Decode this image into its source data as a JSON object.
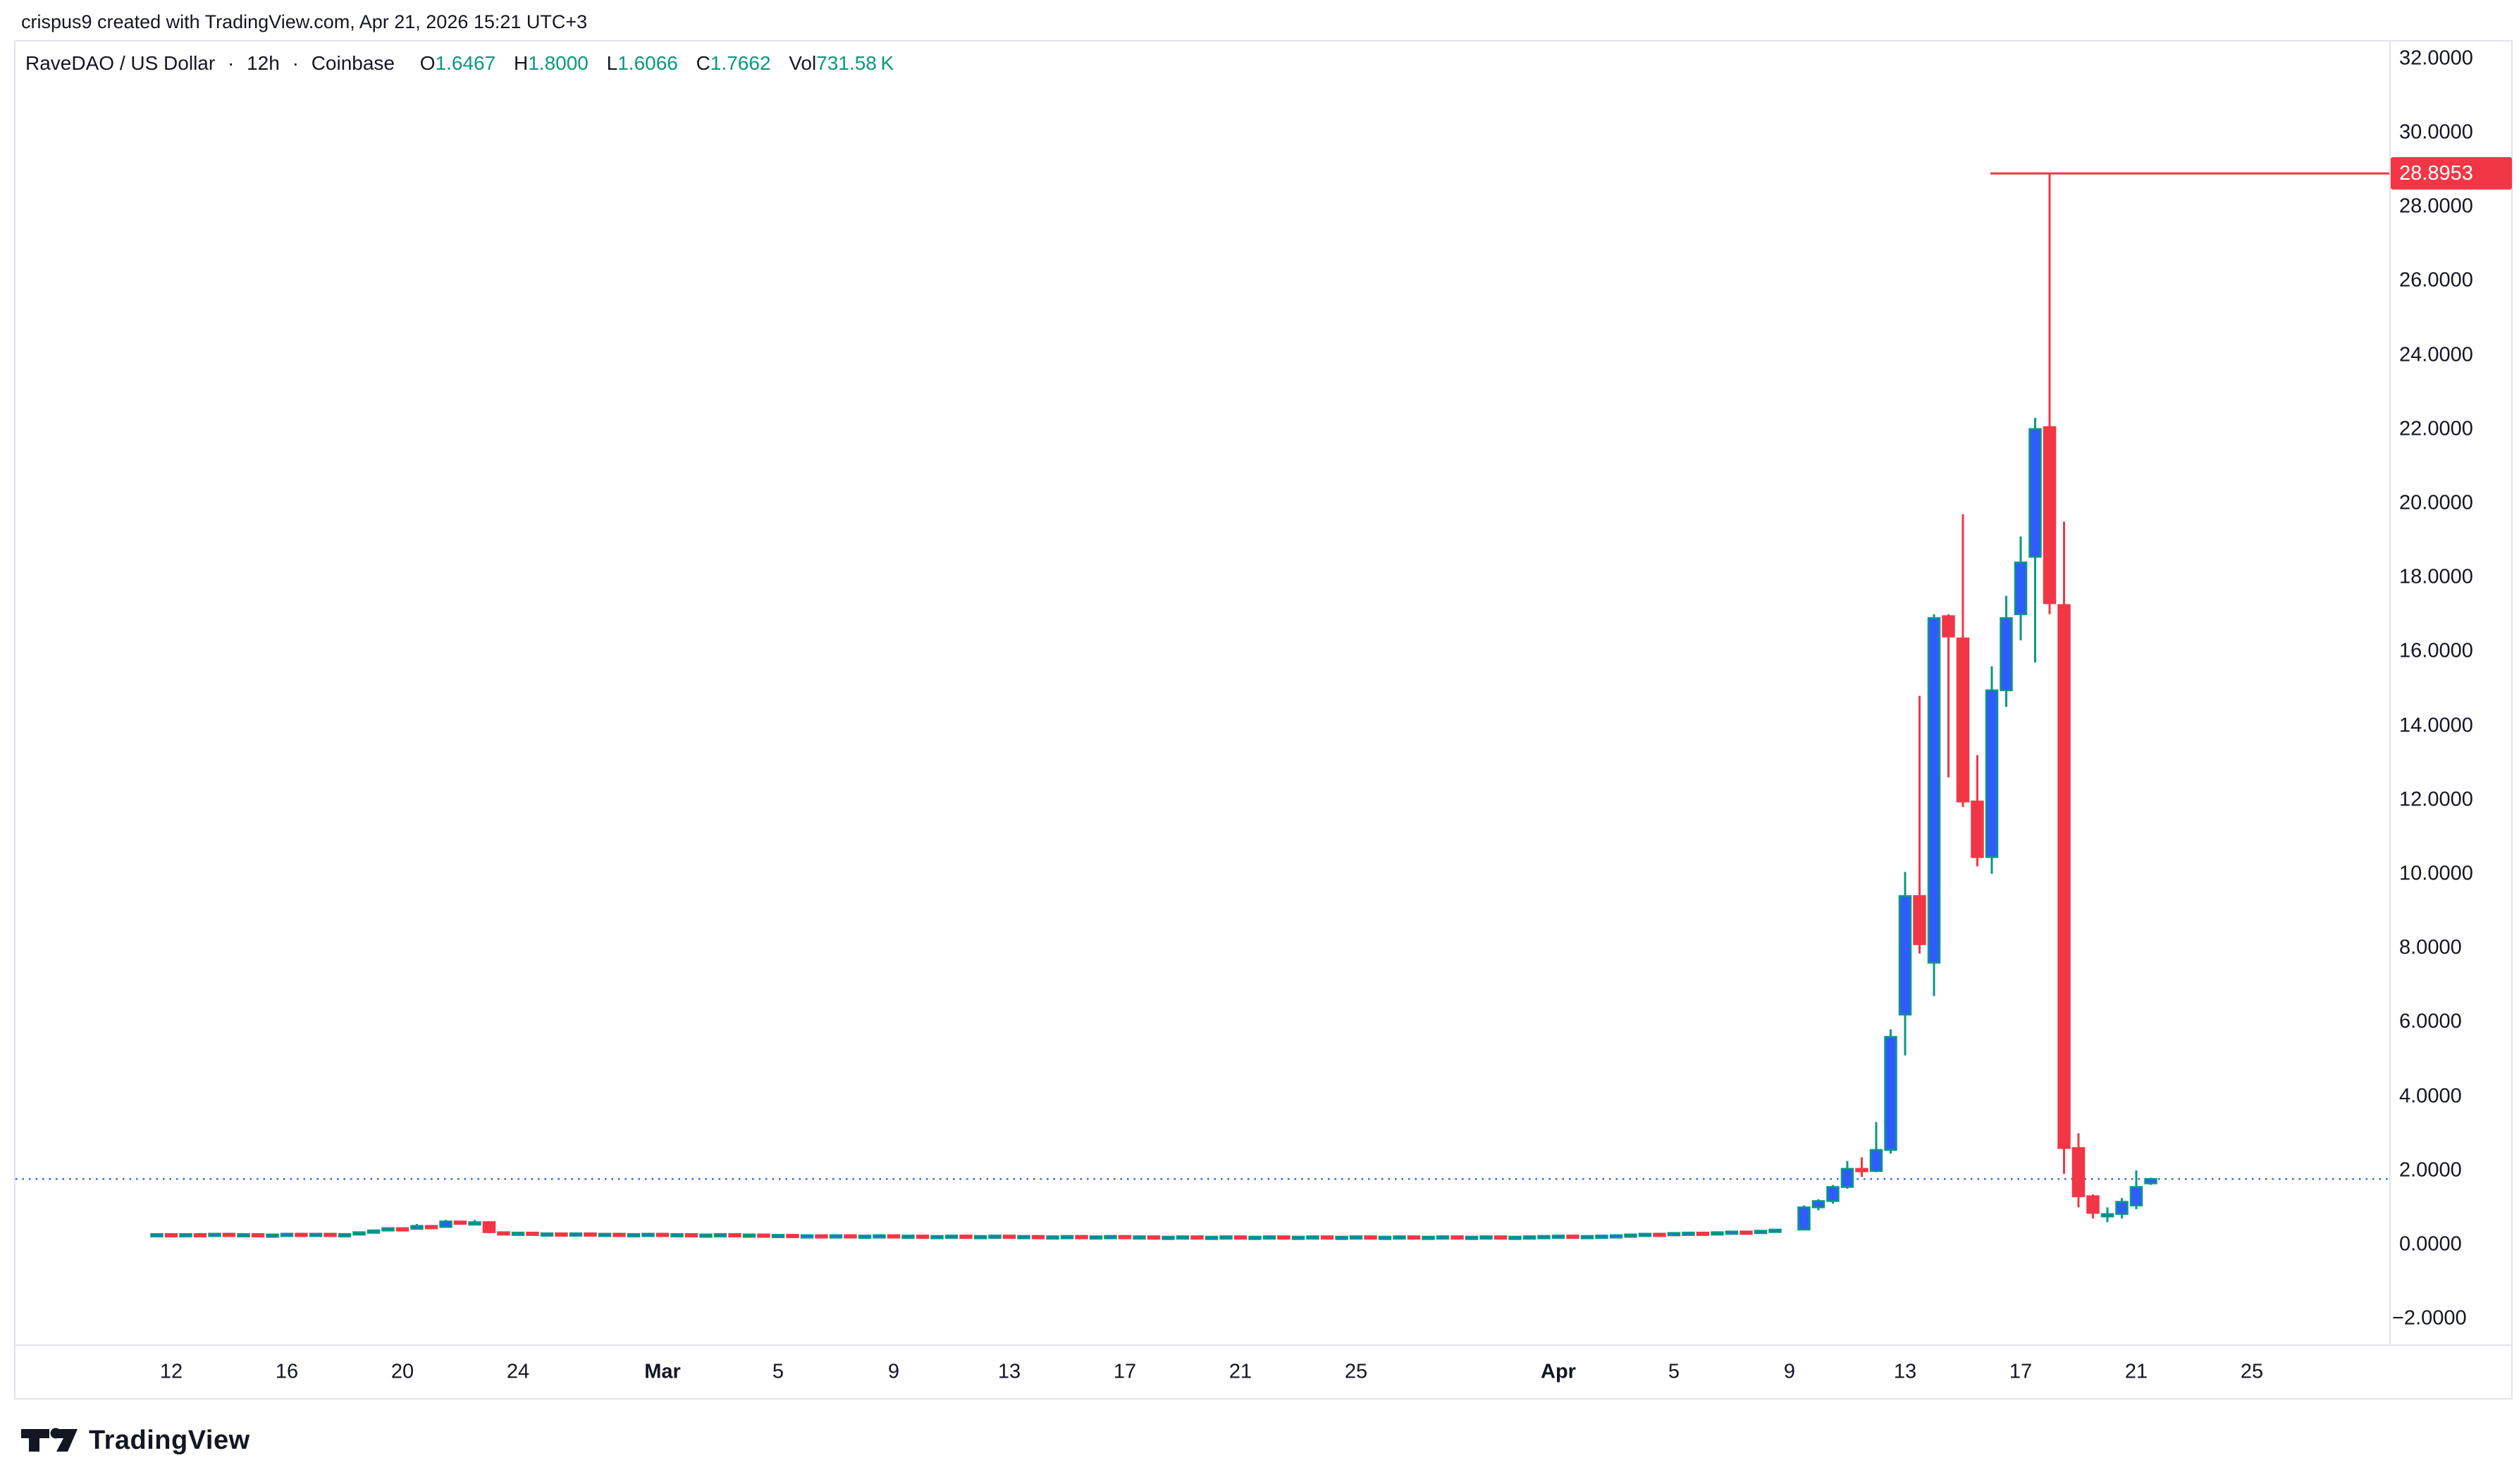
{
  "attribution": "crispus9 created with TradingView.com, Apr 21, 2026 15:21 UTC+3",
  "legend": {
    "symbol": "RaveDAO / US Dollar",
    "separator": "·",
    "interval": "12h",
    "exchange": "Coinbase",
    "o_label": "O",
    "o_value": "1.6467",
    "h_label": "H",
    "h_value": "1.8000",
    "l_label": "L",
    "l_value": "1.6066",
    "c_label": "C",
    "c_value": "1.7662",
    "vol_label": "Vol",
    "vol_value": "731.58 K"
  },
  "logo": {
    "text": "TradingView"
  },
  "colors": {
    "text": "#131722",
    "up_body": "#2e5cff",
    "up_border": "#089981",
    "down": "#f23645",
    "price_line": "#f23645",
    "close_line": "#2962ff",
    "frame": "#e0e3eb",
    "label_text": "#ffffff"
  },
  "chart_data": {
    "type": "candlestick",
    "title": "RaveDAO / US Dollar",
    "interval": "12h",
    "exchange": "Coinbase",
    "ylim": [
      -3.2,
      32.6
    ],
    "grid": false,
    "y_axis_ticks": [
      [
        32,
        "32.0000"
      ],
      [
        30,
        "30.0000"
      ],
      [
        28,
        "28.0000"
      ],
      [
        26,
        "26.0000"
      ],
      [
        24,
        "24.0000"
      ],
      [
        22,
        "22.0000"
      ],
      [
        20,
        "20.0000"
      ],
      [
        18,
        "18.0000"
      ],
      [
        16,
        "16.0000"
      ],
      [
        14,
        "14.0000"
      ],
      [
        12,
        "12.0000"
      ],
      [
        10,
        "10.0000"
      ],
      [
        8,
        "8.0000"
      ],
      [
        6,
        "6.0000"
      ],
      [
        4,
        "4.0000"
      ],
      [
        2,
        "2.0000"
      ],
      [
        0,
        "0.0000"
      ],
      [
        -2,
        "−2.0000"
      ]
    ],
    "x_axis_ticks": [
      [
        "12",
        0,
        false
      ],
      [
        "16",
        4,
        false
      ],
      [
        "20",
        8,
        false
      ],
      [
        "24",
        12,
        false
      ],
      [
        "Mar",
        17,
        true
      ],
      [
        "5",
        21,
        false
      ],
      [
        "9",
        25,
        false
      ],
      [
        "13",
        29,
        false
      ],
      [
        "17",
        33,
        false
      ],
      [
        "21",
        37,
        false
      ],
      [
        "25",
        41,
        false
      ],
      [
        "Apr",
        48,
        true
      ],
      [
        "5",
        52,
        false
      ],
      [
        "9",
        56,
        false
      ],
      [
        "13",
        60,
        false
      ],
      [
        "17",
        64,
        false
      ],
      [
        "21",
        68,
        false
      ],
      [
        "25",
        72,
        false
      ]
    ],
    "price_line": {
      "value": 28.8953,
      "label": "28.8953",
      "start_day": 62.95
    },
    "close_line": {
      "value": 1.7662
    },
    "candles": [
      [
        -0.5,
        0.26,
        0.29,
        0.25,
        0.28
      ],
      [
        0,
        0.28,
        0.29,
        0.25,
        0.26
      ],
      [
        0.5,
        0.26,
        0.29,
        0.25,
        0.28
      ],
      [
        1,
        0.28,
        0.3,
        0.26,
        0.27
      ],
      [
        1.5,
        0.27,
        0.3,
        0.26,
        0.29
      ],
      [
        2,
        0.29,
        0.3,
        0.26,
        0.27
      ],
      [
        2.5,
        0.27,
        0.29,
        0.25,
        0.28
      ],
      [
        3,
        0.28,
        0.29,
        0.25,
        0.26
      ],
      [
        3.5,
        0.26,
        0.28,
        0.24,
        0.27
      ],
      [
        4,
        0.27,
        0.3,
        0.26,
        0.29
      ],
      [
        4.5,
        0.29,
        0.31,
        0.27,
        0.28
      ],
      [
        5,
        0.28,
        0.3,
        0.26,
        0.29
      ],
      [
        5.5,
        0.29,
        0.3,
        0.26,
        0.27
      ],
      [
        6,
        0.27,
        0.29,
        0.25,
        0.28
      ],
      [
        6.5,
        0.28,
        0.34,
        0.27,
        0.33
      ],
      [
        7,
        0.33,
        0.39,
        0.32,
        0.38
      ],
      [
        7.5,
        0.38,
        0.45,
        0.37,
        0.44
      ],
      [
        8,
        0.44,
        0.45,
        0.4,
        0.42
      ],
      [
        8.5,
        0.42,
        0.55,
        0.41,
        0.5
      ],
      [
        9,
        0.5,
        0.52,
        0.45,
        0.47
      ],
      [
        9.5,
        0.47,
        0.66,
        0.46,
        0.62
      ],
      [
        10,
        0.62,
        0.64,
        0.56,
        0.58
      ],
      [
        10.5,
        0.58,
        0.66,
        0.52,
        0.6
      ],
      [
        11,
        0.6,
        0.63,
        0.3,
        0.33
      ],
      [
        11.5,
        0.33,
        0.35,
        0.28,
        0.3
      ],
      [
        12,
        0.3,
        0.33,
        0.29,
        0.32
      ],
      [
        12.5,
        0.32,
        0.33,
        0.28,
        0.29
      ],
      [
        13,
        0.29,
        0.31,
        0.27,
        0.3
      ],
      [
        13.5,
        0.3,
        0.32,
        0.28,
        0.29
      ],
      [
        14,
        0.29,
        0.31,
        0.27,
        0.3
      ],
      [
        14.5,
        0.3,
        0.31,
        0.27,
        0.28
      ],
      [
        15,
        0.28,
        0.3,
        0.26,
        0.29
      ],
      [
        15.5,
        0.29,
        0.3,
        0.26,
        0.27
      ],
      [
        16,
        0.27,
        0.29,
        0.25,
        0.28
      ],
      [
        16.5,
        0.28,
        0.3,
        0.26,
        0.29
      ],
      [
        17,
        0.29,
        0.3,
        0.26,
        0.27
      ],
      [
        17.5,
        0.27,
        0.29,
        0.25,
        0.28
      ],
      [
        18,
        0.28,
        0.29,
        0.25,
        0.26
      ],
      [
        18.5,
        0.26,
        0.28,
        0.24,
        0.27
      ],
      [
        19,
        0.27,
        0.29,
        0.25,
        0.28
      ],
      [
        19.5,
        0.28,
        0.29,
        0.25,
        0.26
      ],
      [
        20,
        0.26,
        0.28,
        0.24,
        0.27
      ],
      [
        20.5,
        0.27,
        0.28,
        0.24,
        0.25
      ],
      [
        21,
        0.25,
        0.27,
        0.23,
        0.26
      ],
      [
        21.5,
        0.26,
        0.27,
        0.23,
        0.24
      ],
      [
        22,
        0.24,
        0.26,
        0.22,
        0.25
      ],
      [
        22.5,
        0.25,
        0.26,
        0.22,
        0.23
      ],
      [
        23,
        0.23,
        0.26,
        0.22,
        0.25
      ],
      [
        23.5,
        0.25,
        0.26,
        0.22,
        0.23
      ],
      [
        24,
        0.23,
        0.25,
        0.21,
        0.24
      ],
      [
        24.5,
        0.24,
        0.26,
        0.22,
        0.25
      ],
      [
        25,
        0.25,
        0.26,
        0.22,
        0.23
      ],
      [
        25.5,
        0.23,
        0.25,
        0.21,
        0.24
      ],
      [
        26,
        0.24,
        0.25,
        0.21,
        0.22
      ],
      [
        26.5,
        0.22,
        0.24,
        0.2,
        0.23
      ],
      [
        27,
        0.23,
        0.25,
        0.21,
        0.24
      ],
      [
        27.5,
        0.24,
        0.25,
        0.21,
        0.22
      ],
      [
        28,
        0.22,
        0.24,
        0.2,
        0.23
      ],
      [
        28.5,
        0.23,
        0.25,
        0.21,
        0.24
      ],
      [
        29,
        0.24,
        0.25,
        0.21,
        0.22
      ],
      [
        29.5,
        0.22,
        0.24,
        0.2,
        0.23
      ],
      [
        30,
        0.23,
        0.24,
        0.2,
        0.21
      ],
      [
        30.5,
        0.21,
        0.23,
        0.19,
        0.22
      ],
      [
        31,
        0.22,
        0.24,
        0.2,
        0.23
      ],
      [
        31.5,
        0.23,
        0.24,
        0.2,
        0.21
      ],
      [
        32,
        0.21,
        0.23,
        0.19,
        0.22
      ],
      [
        32.5,
        0.22,
        0.24,
        0.2,
        0.23
      ],
      [
        33,
        0.23,
        0.24,
        0.2,
        0.21
      ],
      [
        33.5,
        0.21,
        0.23,
        0.19,
        0.22
      ],
      [
        34,
        0.22,
        0.23,
        0.19,
        0.2
      ],
      [
        34.5,
        0.2,
        0.22,
        0.18,
        0.21
      ],
      [
        35,
        0.21,
        0.23,
        0.19,
        0.22
      ],
      [
        35.5,
        0.22,
        0.23,
        0.19,
        0.2
      ],
      [
        36,
        0.2,
        0.22,
        0.18,
        0.21
      ],
      [
        36.5,
        0.21,
        0.23,
        0.19,
        0.22
      ],
      [
        37,
        0.22,
        0.23,
        0.19,
        0.2
      ],
      [
        37.5,
        0.2,
        0.22,
        0.18,
        0.21
      ],
      [
        38,
        0.21,
        0.23,
        0.19,
        0.22
      ],
      [
        38.5,
        0.22,
        0.23,
        0.19,
        0.2
      ],
      [
        39,
        0.2,
        0.22,
        0.18,
        0.21
      ],
      [
        39.5,
        0.21,
        0.23,
        0.19,
        0.22
      ],
      [
        40,
        0.22,
        0.23,
        0.19,
        0.2
      ],
      [
        40.5,
        0.2,
        0.22,
        0.18,
        0.21
      ],
      [
        41,
        0.21,
        0.23,
        0.19,
        0.22
      ],
      [
        41.5,
        0.22,
        0.23,
        0.19,
        0.2
      ],
      [
        42,
        0.2,
        0.22,
        0.18,
        0.21
      ],
      [
        42.5,
        0.21,
        0.23,
        0.19,
        0.22
      ],
      [
        43,
        0.22,
        0.23,
        0.19,
        0.2
      ],
      [
        43.5,
        0.2,
        0.22,
        0.18,
        0.21
      ],
      [
        44,
        0.21,
        0.23,
        0.19,
        0.22
      ],
      [
        44.5,
        0.22,
        0.23,
        0.19,
        0.2
      ],
      [
        45,
        0.2,
        0.22,
        0.18,
        0.21
      ],
      [
        45.5,
        0.21,
        0.23,
        0.19,
        0.22
      ],
      [
        46,
        0.22,
        0.23,
        0.19,
        0.2
      ],
      [
        46.5,
        0.2,
        0.22,
        0.18,
        0.21
      ],
      [
        47,
        0.21,
        0.23,
        0.19,
        0.22
      ],
      [
        47.5,
        0.22,
        0.24,
        0.2,
        0.23
      ],
      [
        48,
        0.23,
        0.25,
        0.21,
        0.24
      ],
      [
        48.5,
        0.24,
        0.25,
        0.21,
        0.22
      ],
      [
        49,
        0.22,
        0.24,
        0.2,
        0.23
      ],
      [
        49.5,
        0.23,
        0.25,
        0.21,
        0.24
      ],
      [
        50,
        0.24,
        0.26,
        0.22,
        0.25
      ],
      [
        50.5,
        0.25,
        0.28,
        0.24,
        0.27
      ],
      [
        51,
        0.27,
        0.3,
        0.26,
        0.29
      ],
      [
        51.5,
        0.29,
        0.3,
        0.27,
        0.28
      ],
      [
        52,
        0.28,
        0.32,
        0.27,
        0.31
      ],
      [
        52.5,
        0.31,
        0.33,
        0.29,
        0.32
      ],
      [
        53,
        0.32,
        0.33,
        0.29,
        0.3
      ],
      [
        53.5,
        0.3,
        0.34,
        0.29,
        0.33
      ],
      [
        54,
        0.33,
        0.36,
        0.32,
        0.35
      ],
      [
        54.5,
        0.35,
        0.36,
        0.32,
        0.33
      ],
      [
        55,
        0.33,
        0.39,
        0.32,
        0.37
      ],
      [
        55.5,
        0.37,
        0.41,
        0.36,
        0.4
      ],
      [
        56.5,
        0.4,
        1.05,
        0.38,
        1.0
      ],
      [
        57,
        1.0,
        1.22,
        0.92,
        1.17
      ],
      [
        57.5,
        1.17,
        1.6,
        1.1,
        1.55
      ],
      [
        58,
        1.55,
        2.25,
        1.5,
        2.04
      ],
      [
        58.5,
        2.04,
        2.35,
        1.82,
        1.98
      ],
      [
        59,
        1.98,
        3.3,
        1.95,
        2.55
      ],
      [
        59.5,
        2.55,
        5.8,
        2.45,
        5.6
      ],
      [
        60,
        6.2,
        10.05,
        5.1,
        9.4
      ],
      [
        60.5,
        9.4,
        14.8,
        7.85,
        8.1
      ],
      [
        61,
        7.6,
        17.0,
        6.7,
        16.9
      ],
      [
        61.5,
        16.95,
        17.0,
        12.6,
        16.4
      ],
      [
        62,
        16.35,
        19.7,
        11.8,
        11.95
      ],
      [
        62.5,
        11.95,
        13.2,
        10.2,
        10.45
      ],
      [
        63,
        10.45,
        15.6,
        10.0,
        14.95
      ],
      [
        63.5,
        14.95,
        17.5,
        14.5,
        16.9
      ],
      [
        64,
        17.0,
        19.1,
        16.3,
        18.4
      ],
      [
        64.5,
        18.55,
        22.3,
        15.7,
        22.0
      ],
      [
        65,
        22.05,
        28.8953,
        17.0,
        17.3
      ],
      [
        65.5,
        17.25,
        19.5,
        1.9,
        2.6
      ],
      [
        66,
        2.6,
        3.0,
        1.0,
        1.3
      ],
      [
        66.5,
        1.3,
        1.35,
        0.7,
        0.85
      ],
      [
        67,
        0.8,
        1.0,
        0.6,
        0.82
      ],
      [
        67.5,
        0.82,
        1.25,
        0.7,
        1.15
      ],
      [
        68,
        1.05,
        2.0,
        0.95,
        1.55
      ],
      [
        68.5,
        1.6467,
        1.8,
        1.6066,
        1.7662
      ]
    ]
  }
}
